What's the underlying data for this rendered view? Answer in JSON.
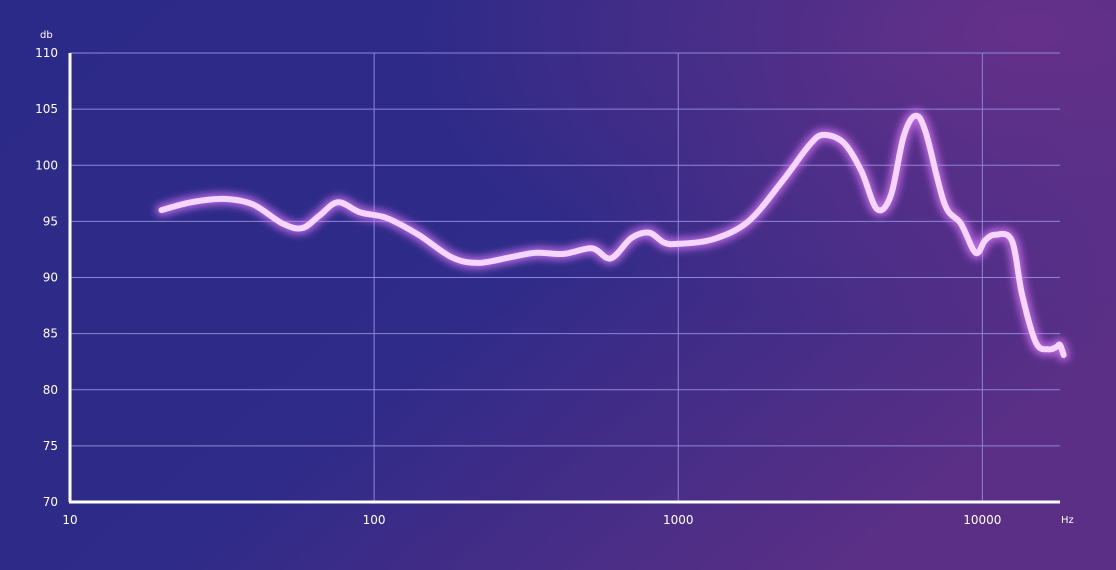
{
  "chart_data": {
    "type": "line",
    "xlabel": "Hz",
    "ylabel": "db",
    "x_scale": "log",
    "xlim": [
      10,
      18000
    ],
    "ylim": [
      70,
      110
    ],
    "grid": true,
    "x_ticks": [
      "10",
      "100",
      "1000",
      "10000"
    ],
    "y_ticks": [
      "70",
      "75",
      "80",
      "85",
      "90",
      "95",
      "100",
      "105",
      "110"
    ],
    "colors": {
      "line": "#f4d6ff",
      "glow": "#e07cff",
      "grid": "#8d86d8",
      "axis": "#ffffff"
    },
    "series": [
      {
        "x": [
          20,
          25,
          32,
          40,
          50,
          58,
          66,
          76,
          90,
          110,
          140,
          180,
          220,
          280,
          340,
          420,
          520,
          600,
          700,
          800,
          900,
          1000,
          1300,
          1700,
          2200,
          2700,
          3000,
          3500,
          4000,
          4500,
          5000,
          5500,
          6000,
          6500,
          7500,
          8500,
          9500,
          10200,
          11000,
          12500,
          13500,
          15000,
          16500,
          17500,
          18000,
          18500
        ],
        "y": [
          96,
          96.7,
          97,
          96.5,
          94.8,
          94.4,
          95.5,
          96.7,
          95.8,
          95.3,
          93.8,
          91.8,
          91.3,
          91.8,
          92.2,
          92.1,
          92.6,
          91.7,
          93.5,
          94,
          93.1,
          93,
          93.4,
          95,
          98.6,
          101.8,
          102.7,
          102,
          99.5,
          96.1,
          97.3,
          102.5,
          104.4,
          103,
          96.6,
          94.8,
          92.2,
          93.3,
          93.8,
          93.3,
          88.5,
          84.2,
          83.6,
          83.8,
          84,
          83.1
        ]
      }
    ]
  }
}
